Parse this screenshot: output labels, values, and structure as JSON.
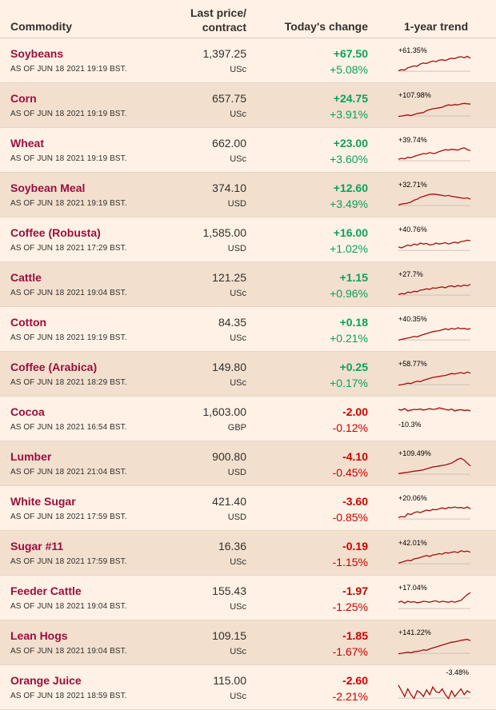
{
  "header": {
    "commodity": "Commodity",
    "last_price_line1": "Last price/",
    "last_price_line2": "contract",
    "todays_change": "Today's change",
    "trend": "1-year trend"
  },
  "colors": {
    "background": "#fff1e5",
    "stripe": "#f2dfce",
    "name": "#990f3d",
    "positive": "#09a25a",
    "negative": "#cc0000",
    "sparkline": "#a50d0d"
  },
  "rows": [
    {
      "name": "Soybeans",
      "as_of": "AS OF JUN 18 2021 19:19 BST.",
      "price": "1,397.25",
      "unit": "USc",
      "change": "+67.50",
      "pct": "+5.08%",
      "dir": "pos",
      "trend_label": "+61.35%",
      "label_pos": "top"
    },
    {
      "name": "Corn",
      "as_of": "AS OF JUN 18 2021 19:19 BST.",
      "price": "657.75",
      "unit": "USc",
      "change": "+24.75",
      "pct": "+3.91%",
      "dir": "pos",
      "trend_label": "+107.98%",
      "label_pos": "top"
    },
    {
      "name": "Wheat",
      "as_of": "AS OF JUN 18 2021 19:19 BST.",
      "price": "662.00",
      "unit": "USc",
      "change": "+23.00",
      "pct": "+3.60%",
      "dir": "pos",
      "trend_label": "+39.74%",
      "label_pos": "top"
    },
    {
      "name": "Soybean Meal",
      "as_of": "AS OF JUN 18 2021 19:19 BST.",
      "price": "374.10",
      "unit": "USD",
      "change": "+12.60",
      "pct": "+3.49%",
      "dir": "pos",
      "trend_label": "+32.71%",
      "label_pos": "top"
    },
    {
      "name": "Coffee (Robusta)",
      "as_of": "AS OF JUN 18 2021 17:29 BST.",
      "price": "1,585.00",
      "unit": "USD",
      "change": "+16.00",
      "pct": "+1.02%",
      "dir": "pos",
      "trend_label": "+40.76%",
      "label_pos": "top"
    },
    {
      "name": "Cattle",
      "as_of": "AS OF JUN 18 2021 19:04 BST.",
      "price": "121.25",
      "unit": "USc",
      "change": "+1.15",
      "pct": "+0.96%",
      "dir": "pos",
      "trend_label": "+27.7%",
      "label_pos": "top"
    },
    {
      "name": "Cotton",
      "as_of": "AS OF JUN 18 2021 19:19 BST.",
      "price": "84.35",
      "unit": "USc",
      "change": "+0.18",
      "pct": "+0.21%",
      "dir": "pos",
      "trend_label": "+40.35%",
      "label_pos": "top"
    },
    {
      "name": "Coffee (Arabica)",
      "as_of": "AS OF JUN 18 2021 18:29 BST.",
      "price": "149.80",
      "unit": "USc",
      "change": "+0.25",
      "pct": "+0.17%",
      "dir": "pos",
      "trend_label": "+58.77%",
      "label_pos": "top"
    },
    {
      "name": "Cocoa",
      "as_of": "AS OF JUN 18 2021 16:54 BST.",
      "price": "1,603.00",
      "unit": "GBP",
      "change": "-2.00",
      "pct": "-0.12%",
      "dir": "neg",
      "trend_label": "-10.3%",
      "label_pos": "bottom"
    },
    {
      "name": "Lumber",
      "as_of": "AS OF JUN 18 2021 21:04 BST.",
      "price": "900.80",
      "unit": "USD",
      "change": "-4.10",
      "pct": "-0.45%",
      "dir": "neg",
      "trend_label": "+109.49%",
      "label_pos": "top"
    },
    {
      "name": "White Sugar",
      "as_of": "AS OF JUN 18 2021 17:59 BST.",
      "price": "421.40",
      "unit": "USD",
      "change": "-3.60",
      "pct": "-0.85%",
      "dir": "neg",
      "trend_label": "+20.06%",
      "label_pos": "top"
    },
    {
      "name": "Sugar #11",
      "as_of": "AS OF JUN 18 2021 17:59 BST.",
      "price": "16.36",
      "unit": "USc",
      "change": "-0.19",
      "pct": "-1.15%",
      "dir": "neg",
      "trend_label": "+42.01%",
      "label_pos": "top"
    },
    {
      "name": "Feeder Cattle",
      "as_of": "AS OF JUN 18 2021 19:04 BST.",
      "price": "155.43",
      "unit": "USc",
      "change": "-1.97",
      "pct": "-1.25%",
      "dir": "neg",
      "trend_label": "+17.04%",
      "label_pos": "top"
    },
    {
      "name": "Lean Hogs",
      "as_of": "AS OF JUN 18 2021 19:04 BST.",
      "price": "109.15",
      "unit": "USc",
      "change": "-1.85",
      "pct": "-1.67%",
      "dir": "neg",
      "trend_label": "+141.22%",
      "label_pos": "top"
    },
    {
      "name": "Orange Juice",
      "as_of": "AS OF JUN 18 2021 18:59 BST.",
      "price": "115.00",
      "unit": "USc",
      "change": "-2.60",
      "pct": "-2.21%",
      "dir": "neg",
      "trend_label": "-3.48%",
      "label_pos": "top-right"
    }
  ]
}
